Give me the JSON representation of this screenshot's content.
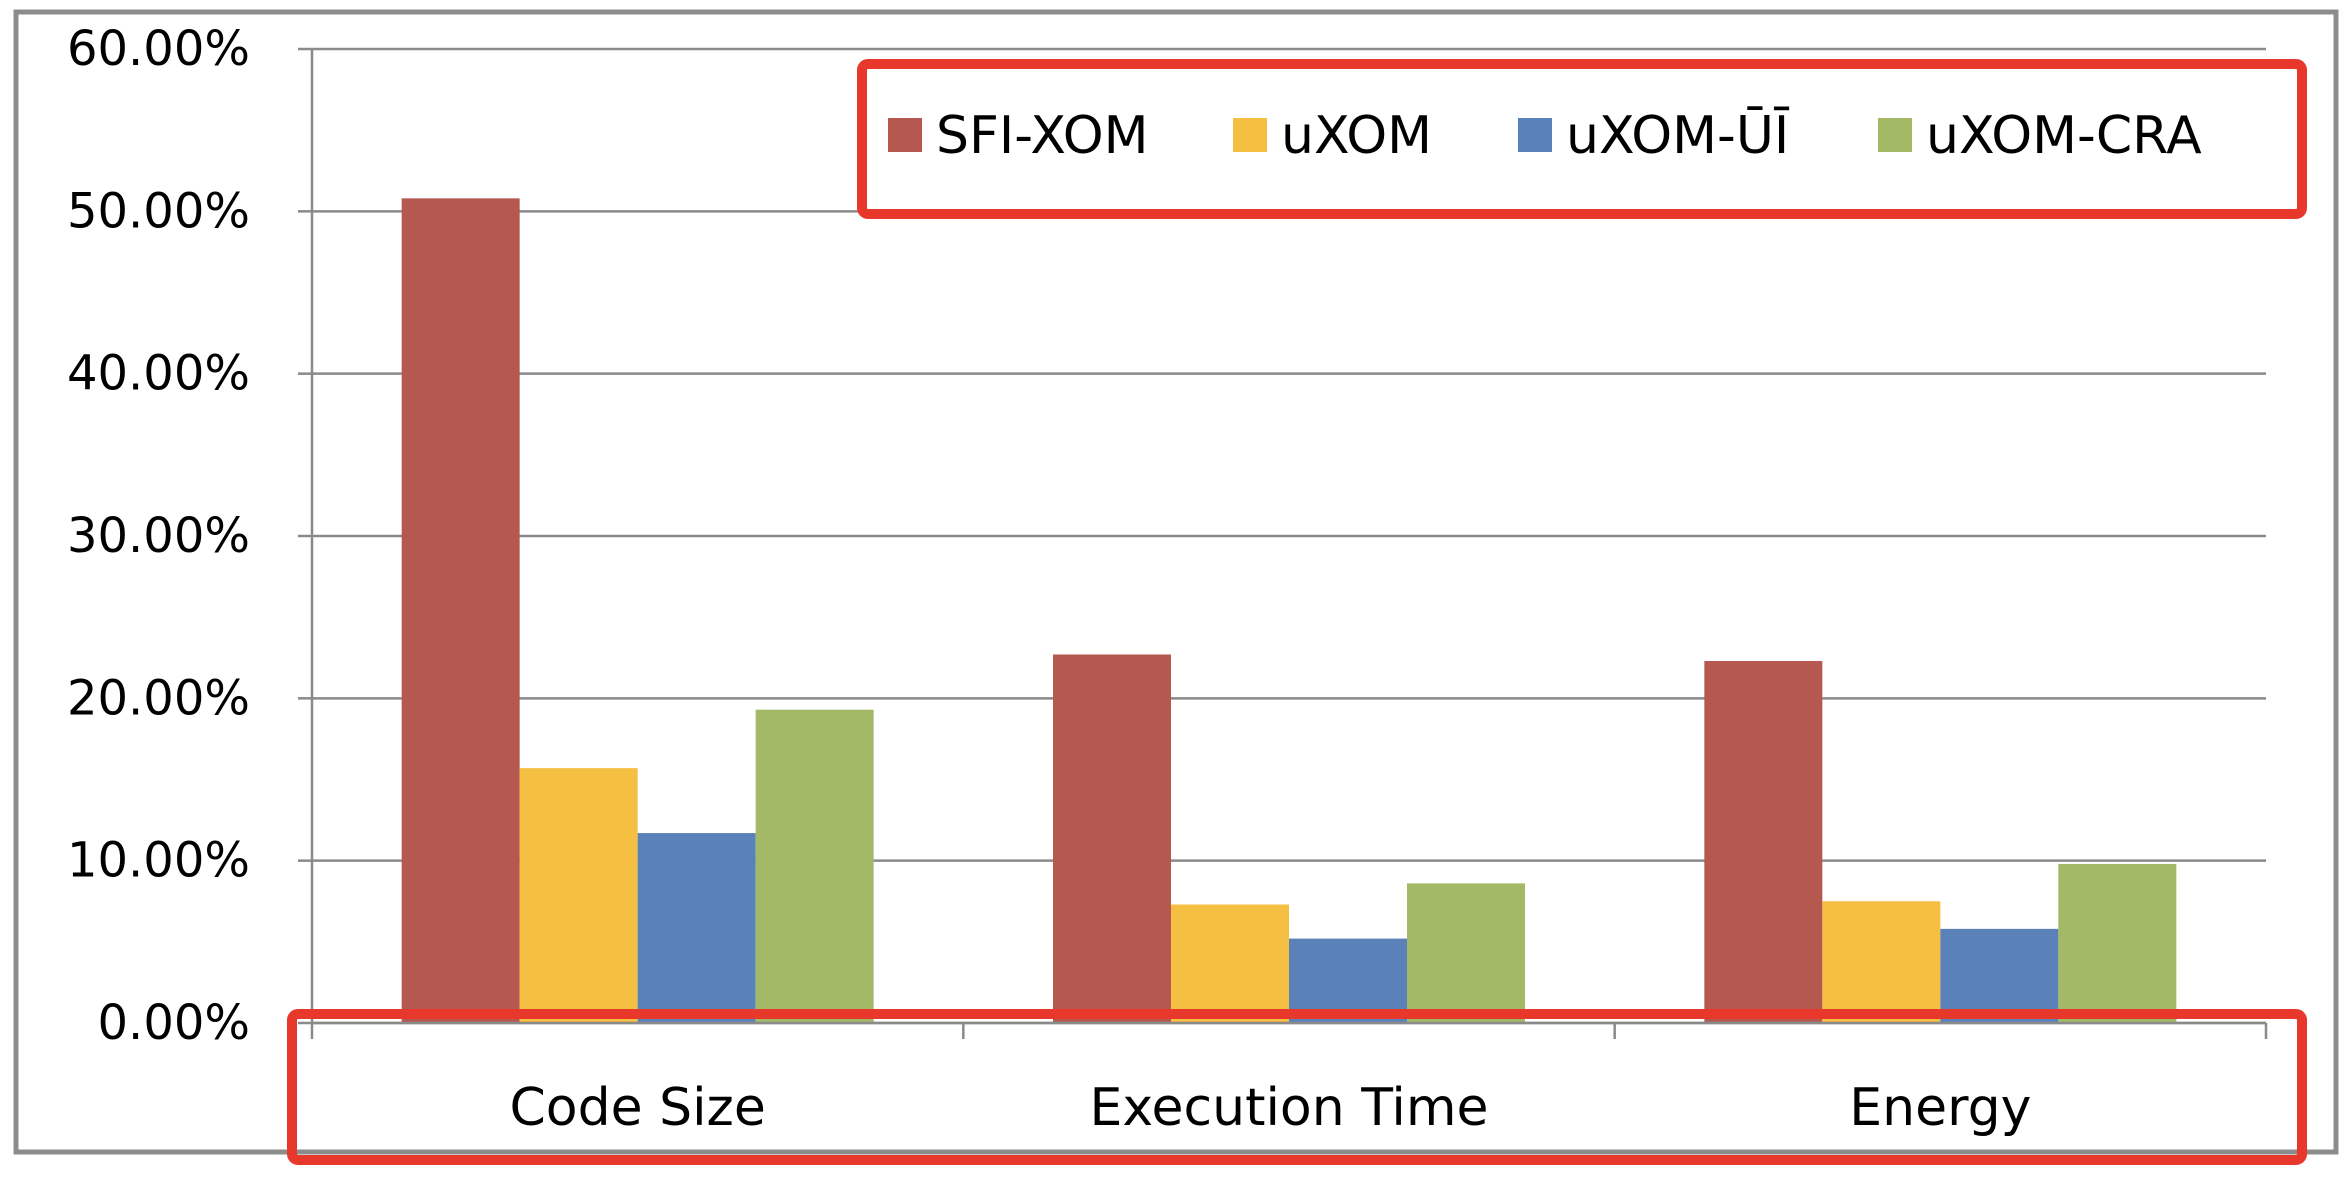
{
  "chart_data": {
    "type": "bar",
    "title": "",
    "xlabel": "",
    "ylabel": "",
    "categories": [
      "Code Size",
      "Execution Time",
      "Energy"
    ],
    "ylim": [
      0,
      60
    ],
    "yticks": [
      "0.00%",
      "10.00%",
      "20.00%",
      "30.00%",
      "40.00%",
      "50.00%",
      "60.00%"
    ],
    "grid": true,
    "legend_position": "top-right",
    "highlight_color": "#e8382c",
    "series": [
      {
        "name": "SFI-XOM",
        "color": "#b5584f",
        "values": [
          50.8,
          22.7,
          22.3
        ]
      },
      {
        "name": "uXOM",
        "color": "#f5bf42",
        "values": [
          15.7,
          7.3,
          7.5
        ]
      },
      {
        "name": "uXOM-ŪĪ",
        "color": "#5b82b8",
        "values": [
          11.7,
          5.2,
          5.8
        ]
      },
      {
        "name": "uXOM-CRA",
        "color": "#a3b965",
        "values": [
          19.3,
          8.6,
          9.8
        ]
      }
    ]
  }
}
